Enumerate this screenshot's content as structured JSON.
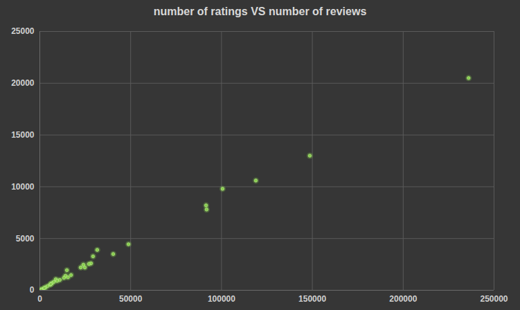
{
  "chart_data": {
    "type": "scatter",
    "title": "number of ratings VS number of reviews",
    "x": [
      236000,
      148600,
      118900,
      100600,
      91500,
      91800,
      48800,
      40400,
      31600,
      29300,
      28200,
      27000,
      24000,
      24800,
      22500,
      14900,
      17200,
      14100,
      13300,
      11000,
      8800,
      7600,
      6500,
      5700,
      4200,
      3000,
      1900,
      1100,
      400,
      15500,
      9500,
      6000,
      2500,
      800
    ],
    "y": [
      20500,
      13000,
      10600,
      9800,
      8200,
      7800,
      4450,
      3500,
      3900,
      3275,
      2600,
      2540,
      2470,
      2200,
      2200,
      1940,
      1470,
      1400,
      1200,
      1000,
      1070,
      800,
      670,
      530,
      400,
      270,
      130,
      70,
      20,
      1250,
      900,
      600,
      220,
      50
    ],
    "xlim": [
      0,
      250000
    ],
    "ylim": [
      0,
      25000
    ],
    "xticks": [
      0,
      50000,
      100000,
      150000,
      200000,
      250000
    ],
    "yticks": [
      0,
      5000,
      10000,
      15000,
      20000,
      25000
    ],
    "grid": true,
    "color": "#86cf4a",
    "marker": "circle"
  }
}
